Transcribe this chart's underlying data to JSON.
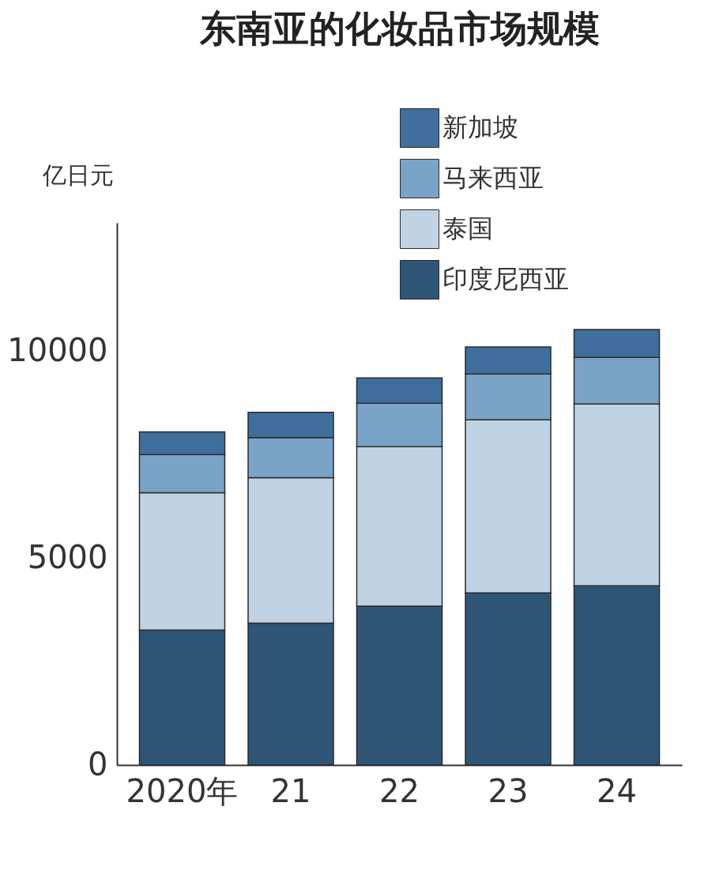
{
  "chart_data": {
    "type": "bar",
    "title": "东南亚的化妆品市场规模",
    "ylabel": "亿日元",
    "categories": [
      "2020年",
      "21",
      "22",
      "23",
      "24"
    ],
    "stacked": true,
    "series": [
      {
        "name": "印度尼西亚",
        "color": "#2f5577",
        "values": [
          3260,
          3430,
          3840,
          4160,
          4330
        ]
      },
      {
        "name": "泰国",
        "color": "#c0d3e5",
        "values": [
          3320,
          3510,
          3850,
          4180,
          4390
        ]
      },
      {
        "name": "马来西亚",
        "color": "#7aa3c8",
        "values": [
          920,
          970,
          1050,
          1110,
          1130
        ]
      },
      {
        "name": "新加坡",
        "color": "#3f6e9c",
        "values": [
          550,
          610,
          610,
          650,
          670
        ]
      }
    ],
    "ylim": [
      0,
      13100
    ],
    "yticks": [
      0,
      5000,
      10000
    ],
    "grid": false,
    "legend": "top right"
  }
}
